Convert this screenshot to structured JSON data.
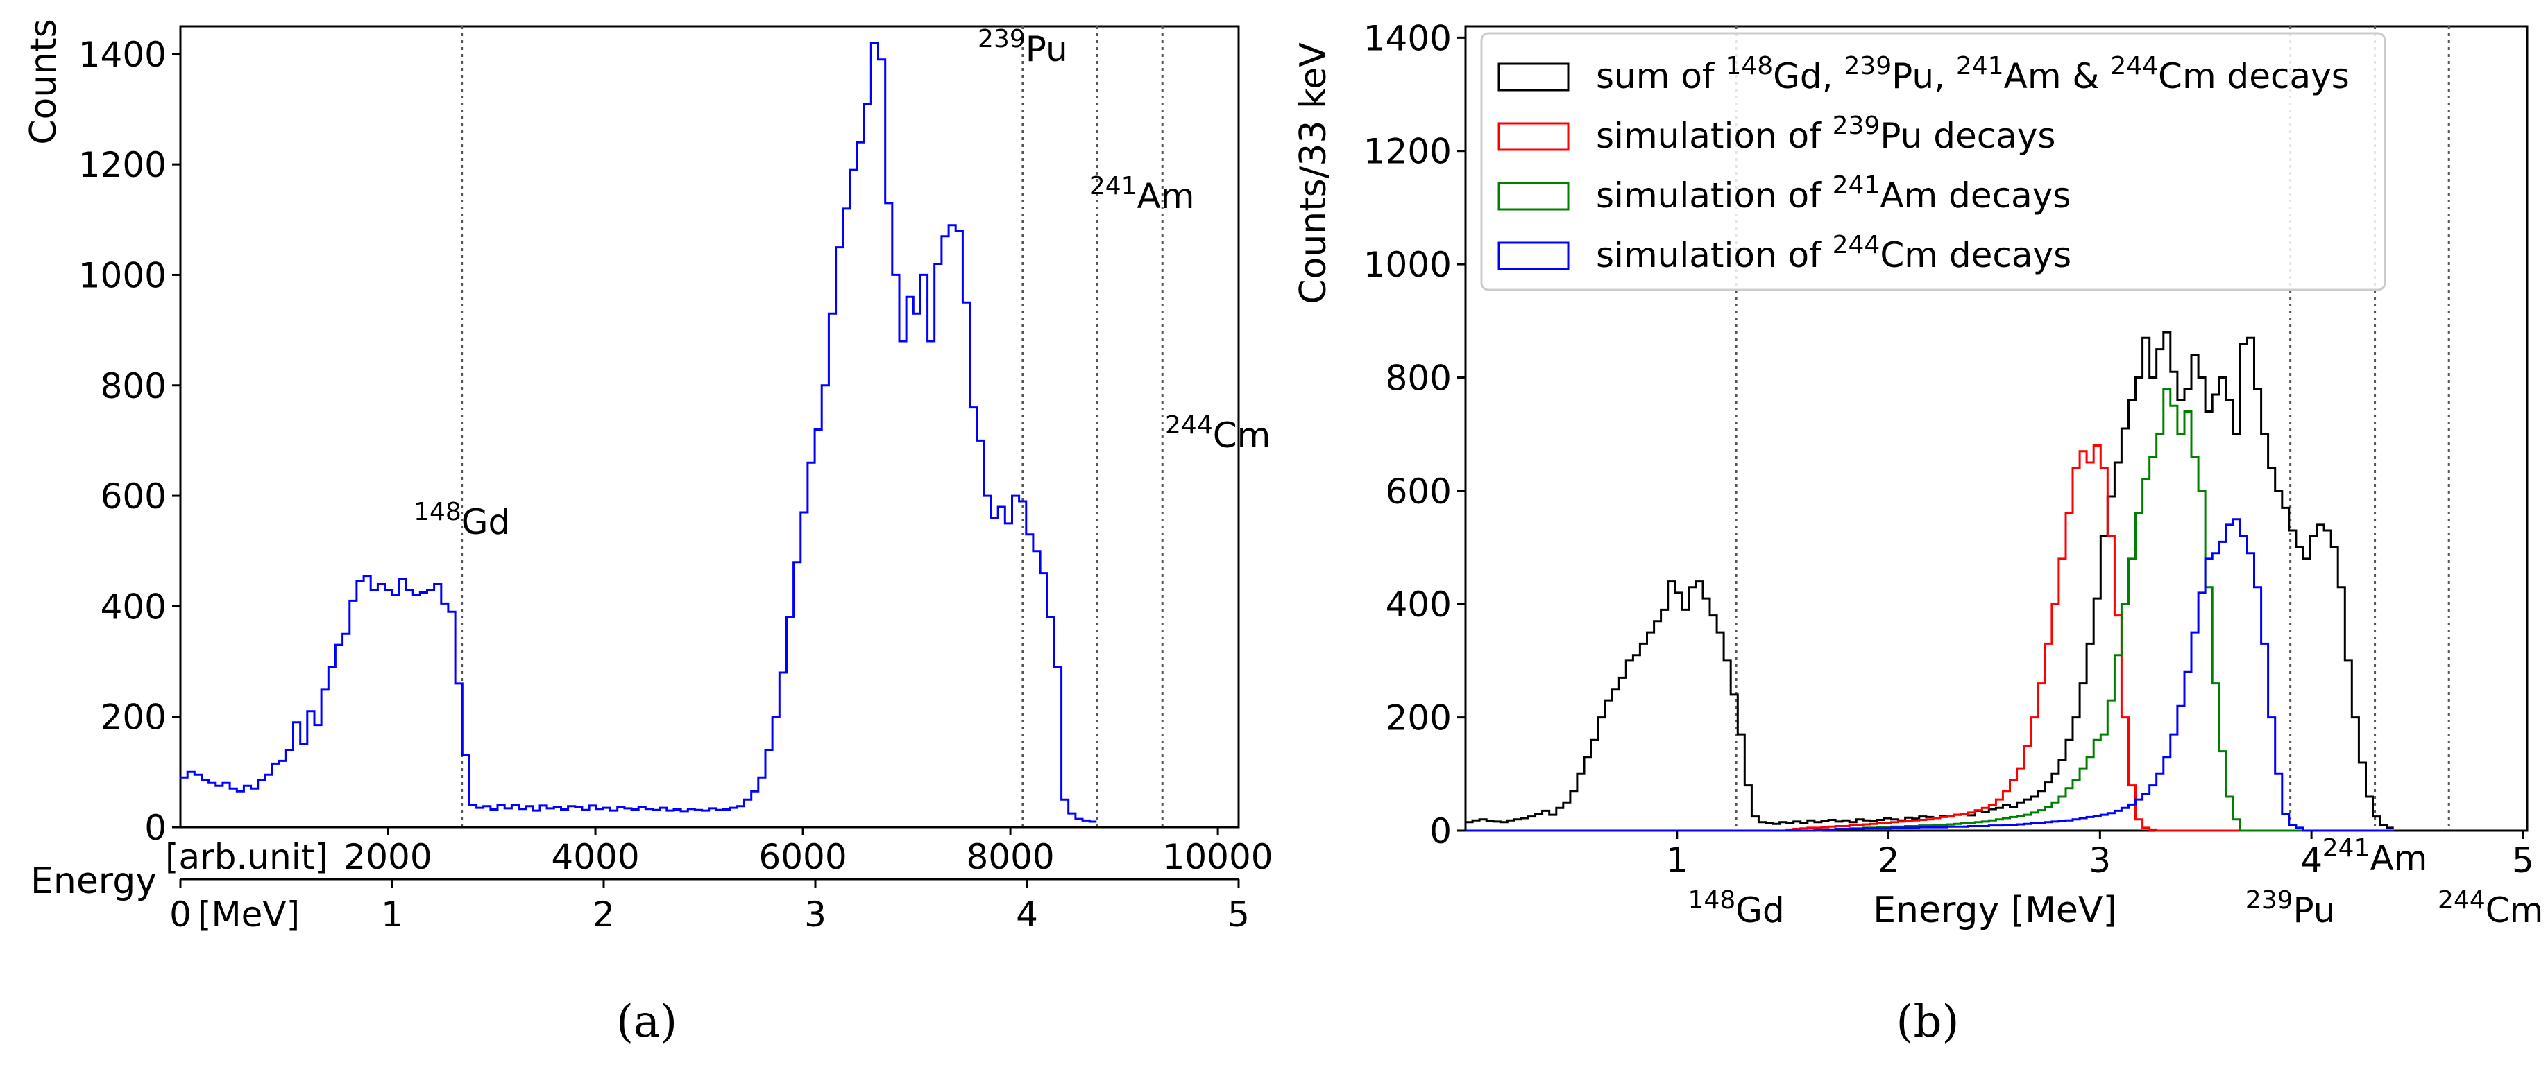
{
  "colors": {
    "measured": "#0000ff",
    "sum": "#000000",
    "pu239": "#ff0000",
    "am241": "#008000",
    "cm244": "#0000ff",
    "guide": "#555555"
  },
  "chart_data": [
    {
      "type": "step-histogram",
      "panel": "a",
      "caption": "(a)",
      "ylabel": "Counts",
      "ylim": [
        0,
        1450
      ],
      "yticks": [
        "0",
        "200",
        "400",
        "600",
        "800",
        "1000",
        "1200",
        "1400"
      ],
      "xlabel": "Energy",
      "top_axis": {
        "unit_label": "[arb.unit]",
        "xlim": [
          0,
          10200
        ],
        "ticks": [
          "2000",
          "4000",
          "6000",
          "8000",
          "10000"
        ]
      },
      "bottom_axis": {
        "unit_label": "[MeV]",
        "xlim": [
          0,
          5
        ],
        "ticks": [
          "0",
          "1",
          "2",
          "3",
          "4",
          "5"
        ]
      },
      "peaks": [
        {
          "mass": "148",
          "element": "Gd",
          "energy_mev": 1.33
        },
        {
          "mass": "239",
          "element": "Pu",
          "energy_mev": 3.98
        },
        {
          "mass": "241",
          "element": "Am",
          "energy_mev": 4.33
        },
        {
          "mass": "244",
          "element": "Cm",
          "energy_mev": 4.64
        }
      ],
      "series": [
        {
          "name": "measured",
          "color": "#0000ff",
          "x_start_mev": 0.0,
          "bin_width_mev": 0.0333,
          "counts": [
            90,
            100,
            95,
            85,
            80,
            75,
            80,
            70,
            65,
            75,
            70,
            85,
            95,
            115,
            120,
            140,
            190,
            150,
            210,
            185,
            250,
            290,
            330,
            350,
            410,
            445,
            455,
            430,
            440,
            430,
            420,
            450,
            430,
            420,
            425,
            430,
            440,
            405,
            390,
            260,
            130,
            40,
            35,
            38,
            32,
            40,
            34,
            40,
            33,
            38,
            30,
            39,
            34,
            36,
            32,
            38,
            36,
            31,
            39,
            33,
            35,
            30,
            37,
            34,
            32,
            36,
            33,
            31,
            35,
            30,
            32,
            29,
            33,
            31,
            30,
            34,
            31,
            32,
            35,
            38,
            50,
            65,
            90,
            140,
            200,
            280,
            380,
            480,
            570,
            660,
            720,
            800,
            930,
            1050,
            1120,
            1190,
            1240,
            1310,
            1420,
            1390,
            1130,
            1000,
            880,
            960,
            930,
            1000,
            880,
            1020,
            1070,
            1090,
            1080,
            950,
            760,
            700,
            600,
            560,
            580,
            550,
            600,
            590,
            530,
            500,
            460,
            380,
            290,
            50,
            25,
            15,
            12,
            10
          ]
        }
      ]
    },
    {
      "type": "step-histogram",
      "panel": "b",
      "caption": "(b)",
      "ylabel": "Counts/33 keV",
      "xlabel": "Energy [MeV]",
      "xlim": [
        0.0,
        5.02
      ],
      "ylim": [
        0,
        1420
      ],
      "xticks": [
        "1",
        "2",
        "3",
        "4",
        "5"
      ],
      "yticks": [
        "0",
        "200",
        "400",
        "600",
        "800",
        "1000",
        "1200",
        "1400"
      ],
      "legend_position": "top",
      "legend": [
        {
          "series": "sum",
          "parts": [
            "sum of ",
            "148",
            "Gd, ",
            "239",
            "Pu, ",
            "241",
            "Am & ",
            "244",
            "Cm decays"
          ]
        },
        {
          "series": "pu239",
          "parts": [
            "simulation of ",
            "239",
            "Pu decays"
          ]
        },
        {
          "series": "am241",
          "parts": [
            "simulation of ",
            "241",
            "Am decays"
          ]
        },
        {
          "series": "cm244",
          "parts": [
            "simulation of ",
            "244",
            "Cm decays"
          ]
        }
      ],
      "peaks": [
        {
          "mass": "148",
          "element": "Gd",
          "energy_mev": 1.28
        },
        {
          "mass": "239",
          "element": "Pu",
          "energy_mev": 3.9
        },
        {
          "mass": "241",
          "element": "Am",
          "energy_mev": 4.3
        },
        {
          "mass": "244",
          "element": "Cm",
          "energy_mev": 4.65
        }
      ],
      "series": [
        {
          "name": "sum",
          "color": "#000000",
          "x_start_mev": 0.0,
          "bin_width_mev": 0.033,
          "counts": [
            15,
            18,
            20,
            17,
            16,
            15,
            18,
            20,
            22,
            25,
            30,
            35,
            28,
            40,
            50,
            70,
            100,
            130,
            160,
            200,
            230,
            250,
            270,
            300,
            310,
            330,
            350,
            370,
            390,
            440,
            420,
            390,
            430,
            440,
            410,
            380,
            350,
            300,
            240,
            170,
            80,
            25,
            15,
            14,
            12,
            15,
            13,
            16,
            14,
            18,
            15,
            17,
            19,
            16,
            18,
            15,
            20,
            18,
            17,
            19,
            22,
            20,
            18,
            23,
            21,
            25,
            24,
            22,
            26,
            25,
            28,
            30,
            27,
            35,
            33,
            38,
            40,
            45,
            42,
            50,
            55,
            60,
            70,
            85,
            100,
            125,
            160,
            200,
            260,
            330,
            410,
            520,
            590,
            650,
            710,
            760,
            800,
            870,
            800,
            850,
            880,
            810,
            760,
            780,
            840,
            800,
            740,
            770,
            800,
            760,
            700,
            860,
            870,
            780,
            700,
            640,
            600,
            570,
            530,
            500,
            480,
            520,
            540,
            530,
            500,
            430,
            300,
            200,
            120,
            60,
            25,
            10,
            5
          ]
        },
        {
          "name": "pu239",
          "color": "#ff0000",
          "x_start_mev": 0.0,
          "bin_width_mev": 0.033,
          "counts": [
            0,
            0,
            0,
            0,
            0,
            0,
            0,
            0,
            0,
            0,
            0,
            0,
            0,
            0,
            0,
            0,
            0,
            0,
            0,
            0,
            0,
            0,
            0,
            0,
            0,
            0,
            0,
            0,
            0,
            0,
            0,
            0,
            0,
            0,
            0,
            0,
            0,
            0,
            0,
            0,
            0,
            0,
            0,
            0,
            0,
            0,
            2,
            3,
            4,
            5,
            5,
            6,
            7,
            8,
            8,
            10,
            10,
            11,
            12,
            13,
            14,
            15,
            16,
            17,
            18,
            19,
            20,
            22,
            24,
            26,
            28,
            30,
            32,
            36,
            40,
            45,
            55,
            70,
            90,
            110,
            150,
            200,
            260,
            330,
            400,
            480,
            560,
            640,
            670,
            650,
            680,
            640,
            520,
            380,
            200,
            80,
            20,
            5,
            2,
            0,
            0,
            0,
            0,
            0,
            0,
            0,
            0,
            0,
            0,
            0,
            0,
            0,
            0,
            0,
            0,
            0,
            0,
            0,
            0,
            0,
            0,
            0,
            0,
            0,
            0,
            0,
            0,
            0,
            0,
            0,
            0,
            0,
            0
          ]
        },
        {
          "name": "am241",
          "color": "#008000",
          "x_start_mev": 0.0,
          "bin_width_mev": 0.033,
          "counts": [
            0,
            0,
            0,
            0,
            0,
            0,
            0,
            0,
            0,
            0,
            0,
            0,
            0,
            0,
            0,
            0,
            0,
            0,
            0,
            0,
            0,
            0,
            0,
            0,
            0,
            0,
            0,
            0,
            0,
            0,
            0,
            0,
            0,
            0,
            0,
            0,
            0,
            0,
            0,
            0,
            0,
            0,
            0,
            0,
            0,
            0,
            0,
            0,
            0,
            0,
            0,
            2,
            2,
            3,
            3,
            4,
            4,
            5,
            5,
            6,
            6,
            7,
            7,
            8,
            8,
            9,
            9,
            10,
            10,
            11,
            12,
            13,
            14,
            15,
            16,
            18,
            20,
            22,
            24,
            26,
            28,
            32,
            36,
            42,
            50,
            60,
            75,
            90,
            110,
            130,
            160,
            170,
            230,
            310,
            400,
            480,
            560,
            620,
            660,
            700,
            780,
            750,
            700,
            740,
            660,
            600,
            430,
            260,
            140,
            60,
            20,
            0,
            0,
            0,
            0,
            0,
            0,
            0,
            0,
            0,
            0,
            0,
            0,
            0,
            0,
            0,
            0,
            0,
            0,
            0,
            0,
            0
          ]
        },
        {
          "name": "cm244",
          "color": "#0000ff",
          "x_start_mev": 0.0,
          "bin_width_mev": 0.033,
          "counts": [
            0,
            0,
            0,
            0,
            0,
            0,
            0,
            0,
            0,
            0,
            0,
            0,
            0,
            0,
            0,
            0,
            0,
            0,
            0,
            0,
            0,
            0,
            0,
            0,
            0,
            0,
            0,
            0,
            0,
            0,
            0,
            0,
            0,
            0,
            0,
            0,
            0,
            0,
            0,
            0,
            0,
            0,
            0,
            0,
            0,
            0,
            0,
            0,
            0,
            0,
            2,
            2,
            2,
            3,
            3,
            3,
            3,
            4,
            4,
            4,
            4,
            5,
            5,
            5,
            5,
            6,
            6,
            6,
            6,
            7,
            7,
            7,
            8,
            8,
            8,
            9,
            9,
            10,
            10,
            11,
            12,
            13,
            14,
            15,
            16,
            17,
            18,
            20,
            22,
            24,
            26,
            28,
            31,
            35,
            40,
            46,
            55,
            65,
            80,
            100,
            130,
            170,
            220,
            280,
            350,
            420,
            480,
            490,
            510,
            540,
            550,
            520,
            490,
            430,
            330,
            200,
            100,
            30,
            10,
            5,
            0,
            0,
            0,
            0,
            0,
            0,
            0,
            0,
            0,
            0,
            0,
            0,
            0
          ]
        }
      ]
    }
  ]
}
